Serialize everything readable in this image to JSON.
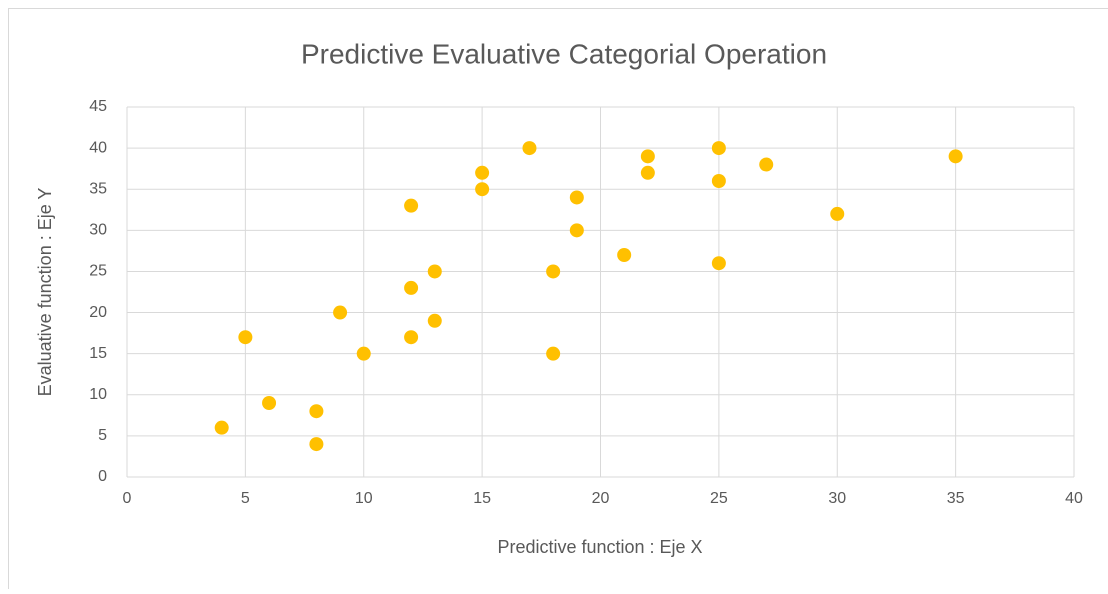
{
  "chart_data": {
    "type": "scatter",
    "title": "Predictive Evaluative Categorial Operation",
    "xlabel": "Predictive function : Eje X",
    "ylabel": "Evaluative function : Eje Y",
    "color": "#ffc000",
    "grid": true,
    "x": [
      4,
      5,
      6,
      8,
      8,
      9,
      10,
      12,
      12,
      12,
      13,
      13,
      15,
      15,
      17,
      18,
      18,
      19,
      19,
      21,
      22,
      22,
      25,
      25,
      25,
      27,
      30,
      35
    ],
    "values": [
      6,
      17,
      9,
      8,
      4,
      20,
      15,
      33,
      23,
      17,
      25,
      19,
      37,
      35,
      40,
      25,
      15,
      34,
      30,
      27,
      39,
      37,
      40,
      36,
      26,
      38,
      32,
      39
    ],
    "xlim": [
      0,
      40
    ],
    "xticks": [
      0,
      5,
      10,
      15,
      20,
      25,
      30,
      35,
      40
    ],
    "ylim": [
      0,
      45
    ],
    "yticks": [
      0,
      5,
      10,
      15,
      20,
      25,
      30,
      35,
      40,
      45
    ]
  }
}
